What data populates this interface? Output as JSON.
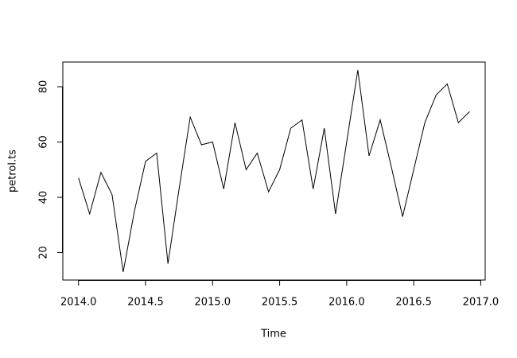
{
  "chart_data": {
    "type": "line",
    "xlabel": "Time",
    "ylabel": "petrol.ts",
    "x": [
      2014.0,
      2014.083,
      2014.167,
      2014.25,
      2014.333,
      2014.417,
      2014.5,
      2014.583,
      2014.667,
      2014.75,
      2014.833,
      2014.917,
      2015.0,
      2015.083,
      2015.167,
      2015.25,
      2015.333,
      2015.417,
      2015.5,
      2015.583,
      2015.667,
      2015.75,
      2015.833,
      2015.917,
      2016.0,
      2016.083,
      2016.167,
      2016.25,
      2016.333,
      2016.417,
      2016.5,
      2016.583,
      2016.667,
      2016.75,
      2016.833,
      2016.917
    ],
    "series": [
      {
        "color": "#000000",
        "values": [
          47,
          34,
          49,
          41,
          13,
          35,
          53,
          56,
          16,
          43,
          69,
          59,
          60,
          43,
          67,
          50,
          56,
          42,
          50,
          65,
          68,
          43,
          65,
          34,
          60,
          86,
          55,
          68,
          51,
          33,
          50,
          67,
          77,
          81,
          67,
          71
        ]
      }
    ],
    "xlim": [
      2013.883,
      2017.033
    ],
    "ylim": [
      10.08,
      88.92
    ],
    "xticks": [
      {
        "value": 2014,
        "label": "2014.0"
      },
      2014.5,
      {
        "value": 2015,
        "label": "2015.0"
      },
      2015.5,
      {
        "value": 2016,
        "label": "2016.0"
      },
      2016.5,
      {
        "value": 2017,
        "label": "2017.0"
      }
    ],
    "yticks": [
      20,
      40,
      60,
      80
    ]
  }
}
